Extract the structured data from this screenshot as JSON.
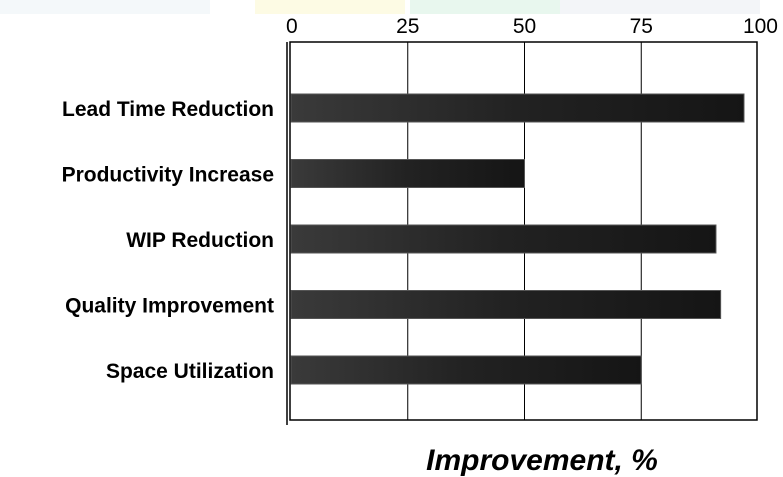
{
  "chart_data": {
    "type": "bar",
    "orientation": "horizontal",
    "categories": [
      "Lead Time Reduction",
      "Productivity Increase",
      "WIP Reduction",
      "Quality Improvement",
      "Space Utilization"
    ],
    "values": [
      97,
      50,
      91,
      92,
      75
    ],
    "title": "",
    "xlabel": "Improvement, %",
    "ylabel": "",
    "xlim": [
      0,
      100
    ],
    "xticks": [
      "0",
      "25",
      "50",
      "75",
      "100"
    ],
    "x_axis_position": "top",
    "grid": true,
    "bar_color": "#1e1e1e"
  }
}
